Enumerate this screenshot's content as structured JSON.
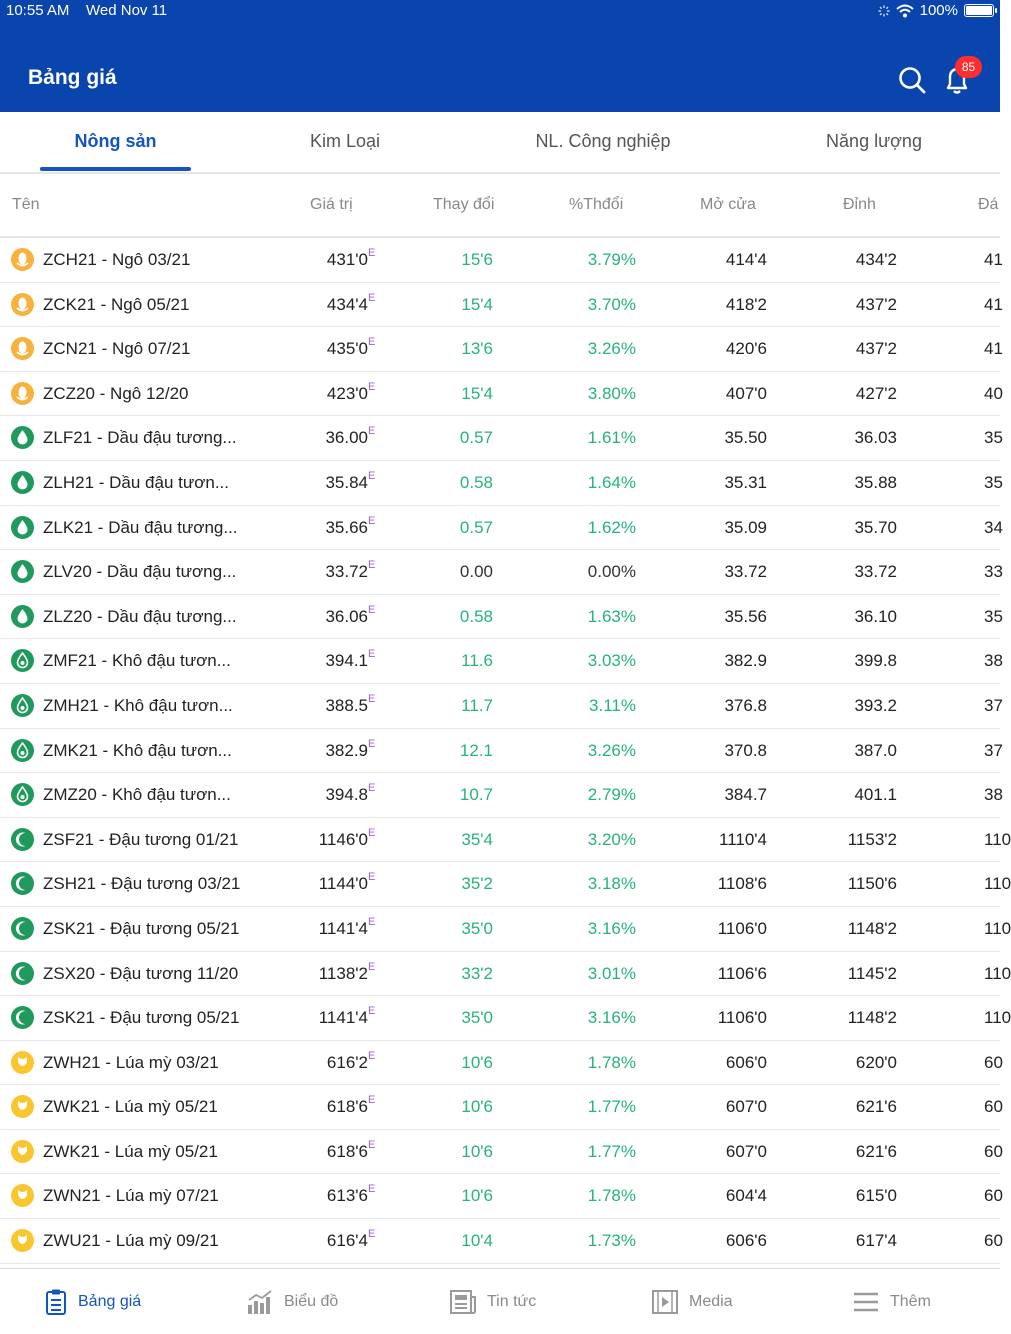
{
  "status_bar": {
    "time": "10:55 AM",
    "date": "Wed Nov 11",
    "battery": "100%"
  },
  "header": {
    "title": "Bảng giá",
    "notification_count": "85"
  },
  "tabs": [
    {
      "label": "Nông sản",
      "active": true
    },
    {
      "label": "Kim Loại",
      "active": false
    },
    {
      "label": "NL. Công nghiệp",
      "active": false
    },
    {
      "label": "Năng lượng",
      "active": false
    }
  ],
  "columns": {
    "name": "Tên",
    "value": "Giá trị",
    "change": "Thay đổi",
    "pct": "%Thđổi",
    "open": "Mở cửa",
    "high": "Đỉnh",
    "low": "Đá"
  },
  "rows": [
    {
      "icon": "corn",
      "name": "ZCH21 - Ngô 03/21",
      "value": "431'0",
      "tag": "E",
      "change": "15'6",
      "pct": "3.79%",
      "open": "414'4",
      "high": "434'2",
      "low": "41"
    },
    {
      "icon": "corn",
      "name": "ZCK21 - Ngô 05/21",
      "value": "434'4",
      "tag": "E",
      "change": "15'4",
      "pct": "3.70%",
      "open": "418'2",
      "high": "437'2",
      "low": "41"
    },
    {
      "icon": "corn",
      "name": "ZCN21 - Ngô 07/21",
      "value": "435'0",
      "tag": "E",
      "change": "13'6",
      "pct": "3.26%",
      "open": "420'6",
      "high": "437'2",
      "low": "41"
    },
    {
      "icon": "corn",
      "name": "ZCZ20 - Ngô 12/20",
      "value": "423'0",
      "tag": "E",
      "change": "15'4",
      "pct": "3.80%",
      "open": "407'0",
      "high": "427'2",
      "low": "40"
    },
    {
      "icon": "oil",
      "name": "ZLF21 - Dầu đậu tương...",
      "value": "36.00",
      "tag": "E",
      "change": "0.57",
      "pct": "1.61%",
      "open": "35.50",
      "high": "36.03",
      "low": "35"
    },
    {
      "icon": "oil",
      "name": "ZLH21 - Dầu đậu tươn...",
      "value": "35.84",
      "tag": "E",
      "change": "0.58",
      "pct": "1.64%",
      "open": "35.31",
      "high": "35.88",
      "low": "35"
    },
    {
      "icon": "oil",
      "name": "ZLK21 - Dầu đậu tương...",
      "value": "35.66",
      "tag": "E",
      "change": "0.57",
      "pct": "1.62%",
      "open": "35.09",
      "high": "35.70",
      "low": "34"
    },
    {
      "icon": "oil",
      "name": "ZLV20 - Dầu đậu tương...",
      "value": "33.72",
      "tag": "E",
      "change": "0.00",
      "pct": "0.00%",
      "open": "33.72",
      "high": "33.72",
      "low": "33"
    },
    {
      "icon": "oil",
      "name": "ZLZ20 - Dầu đậu tương...",
      "value": "36.06",
      "tag": "E",
      "change": "0.58",
      "pct": "1.63%",
      "open": "35.56",
      "high": "36.10",
      "low": "35"
    },
    {
      "icon": "meal",
      "name": "ZMF21 - Khô đậu tươn...",
      "value": "394.1",
      "tag": "E",
      "change": "11.6",
      "pct": "3.03%",
      "open": "382.9",
      "high": "399.8",
      "low": "38"
    },
    {
      "icon": "meal",
      "name": "ZMH21 - Khô đậu tươn...",
      "value": "388.5",
      "tag": "E",
      "change": "11.7",
      "pct": "3.11%",
      "open": "376.8",
      "high": "393.2",
      "low": "37"
    },
    {
      "icon": "meal",
      "name": "ZMK21 - Khô đậu tươn...",
      "value": "382.9",
      "tag": "E",
      "change": "12.1",
      "pct": "3.26%",
      "open": "370.8",
      "high": "387.0",
      "low": "37"
    },
    {
      "icon": "meal",
      "name": "ZMZ20 - Khô đậu tươn...",
      "value": "394.8",
      "tag": "E",
      "change": "10.7",
      "pct": "2.79%",
      "open": "384.7",
      "high": "401.1",
      "low": "38"
    },
    {
      "icon": "soy",
      "name": "ZSF21 - Đậu tương 01/21",
      "value": "1146'0",
      "tag": "E",
      "change": "35'4",
      "pct": "3.20%",
      "open": "1110'4",
      "high": "1153'2",
      "low": "110"
    },
    {
      "icon": "soy",
      "name": "ZSH21 - Đậu tương 03/21",
      "value": "1144'0",
      "tag": "E",
      "change": "35'2",
      "pct": "3.18%",
      "open": "1108'6",
      "high": "1150'6",
      "low": "110"
    },
    {
      "icon": "soy",
      "name": "ZSK21 - Đậu tương 05/21",
      "value": "1141'4",
      "tag": "E",
      "change": "35'0",
      "pct": "3.16%",
      "open": "1106'0",
      "high": "1148'2",
      "low": "110"
    },
    {
      "icon": "soy",
      "name": "ZSX20 - Đậu tương 11/20",
      "value": "1138'2",
      "tag": "E",
      "change": "33'2",
      "pct": "3.01%",
      "open": "1106'6",
      "high": "1145'2",
      "low": "110"
    },
    {
      "icon": "soy",
      "name": "ZSK21 - Đậu tương 05/21",
      "value": "1141'4",
      "tag": "E",
      "change": "35'0",
      "pct": "3.16%",
      "open": "1106'0",
      "high": "1148'2",
      "low": "110"
    },
    {
      "icon": "wheat",
      "name": "ZWH21 - Lúa mỳ 03/21",
      "value": "616'2",
      "tag": "E",
      "change": "10'6",
      "pct": "1.78%",
      "open": "606'0",
      "high": "620'0",
      "low": "60"
    },
    {
      "icon": "wheat",
      "name": "ZWK21 - Lúa mỳ 05/21",
      "value": "618'6",
      "tag": "E",
      "change": "10'6",
      "pct": "1.77%",
      "open": "607'0",
      "high": "621'6",
      "low": "60"
    },
    {
      "icon": "wheat",
      "name": "ZWK21 - Lúa mỳ 05/21",
      "value": "618'6",
      "tag": "E",
      "change": "10'6",
      "pct": "1.77%",
      "open": "607'0",
      "high": "621'6",
      "low": "60"
    },
    {
      "icon": "wheat",
      "name": "ZWN21 - Lúa mỳ 07/21",
      "value": "613'6",
      "tag": "E",
      "change": "10'6",
      "pct": "1.78%",
      "open": "604'4",
      "high": "615'0",
      "low": "60"
    },
    {
      "icon": "wheat",
      "name": "ZWU21 - Lúa mỳ 09/21",
      "value": "616'4",
      "tag": "E",
      "change": "10'4",
      "pct": "1.73%",
      "open": "606'6",
      "high": "617'4",
      "low": "60"
    }
  ],
  "bottom_nav": [
    {
      "label": "Bảng giá",
      "icon": "price-board-icon",
      "active": true
    },
    {
      "label": "Biểu đồ",
      "icon": "chart-icon",
      "active": false
    },
    {
      "label": "Tin tức",
      "icon": "news-icon",
      "active": false
    },
    {
      "label": "Media",
      "icon": "media-icon",
      "active": false
    },
    {
      "label": "Thêm",
      "icon": "menu-icon",
      "active": false
    }
  ],
  "colors": {
    "header": "#0a44ad",
    "accent": "#1553c2",
    "up": "#27b37a",
    "corn": "#f6b23c",
    "green": "#1f9a5c",
    "wheat": "#f9c62f",
    "tag": "#a064d8",
    "badge": "#ff2d2d"
  }
}
